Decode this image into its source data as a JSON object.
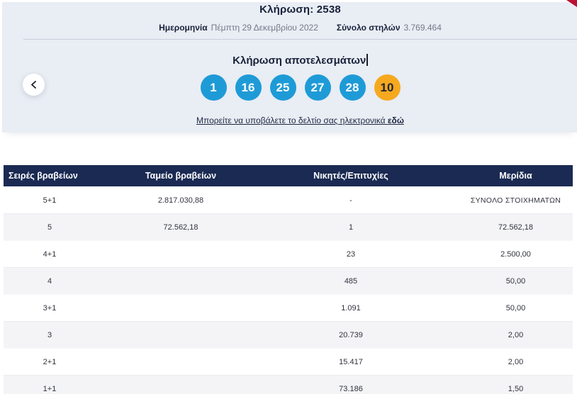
{
  "header": {
    "title": "Κλήρωση: 2538",
    "date_label": "Ημερομηνία",
    "date_value": "Πέμπτη 29 Δεκεμβρίου 2022",
    "columns_label": "Σύνολο στηλών",
    "columns_value": "3.769.464"
  },
  "results": {
    "title": "Κλήρωση αποτελεσμάτων",
    "numbers": [
      {
        "value": "1",
        "type": "main"
      },
      {
        "value": "16",
        "type": "main"
      },
      {
        "value": "25",
        "type": "main"
      },
      {
        "value": "27",
        "type": "main"
      },
      {
        "value": "28",
        "type": "main"
      },
      {
        "value": "10",
        "type": "bonus"
      }
    ],
    "link_text": "Μπορείτε να υποβάλετε το δελτίο σας ηλεκτρονικά ",
    "link_bold": "εδώ"
  },
  "table": {
    "headers": [
      "Σειρές βραβείων",
      "Ταμείο βραβείων",
      "Νικητές/Επιτυχίες",
      "Μερίδια"
    ],
    "rows": [
      {
        "tier": "5+1",
        "fund": "2.817.030,88",
        "winners": "-",
        "share": "ΣΥΝΟΛΟ ΣΤΟΙΧΗΜΑΤΩΝ"
      },
      {
        "tier": "5",
        "fund": "72.562,18",
        "winners": "1",
        "share": "72.562,18"
      },
      {
        "tier": "4+1",
        "fund": "",
        "winners": "23",
        "share": "2.500,00"
      },
      {
        "tier": "4",
        "fund": "",
        "winners": "485",
        "share": "50,00"
      },
      {
        "tier": "3+1",
        "fund": "",
        "winners": "1.091",
        "share": "50,00"
      },
      {
        "tier": "3",
        "fund": "",
        "winners": "20.739",
        "share": "2,00"
      },
      {
        "tier": "2+1",
        "fund": "",
        "winners": "15.417",
        "share": "2,00"
      },
      {
        "tier": "1+1",
        "fund": "",
        "winners": "73.186",
        "share": "1,50"
      }
    ]
  },
  "colors": {
    "panel_bg": "#e9edf4",
    "ball_blue": "#1e9bd7",
    "ball_bonus_orange": "#f5a91f",
    "table_header_navy": "#1a2a52",
    "corner_red": "#bb1133"
  }
}
